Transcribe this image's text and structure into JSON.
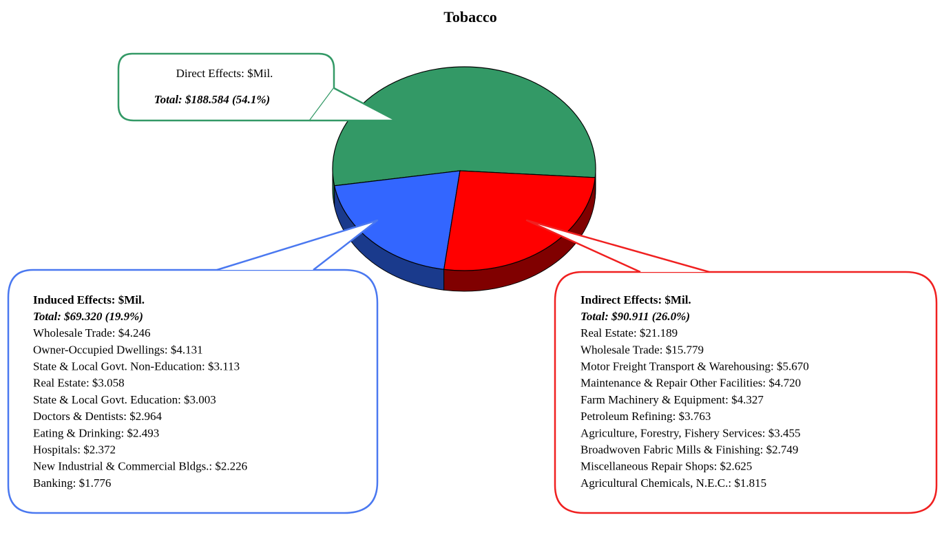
{
  "chart_data": {
    "type": "pie",
    "title": "Tobacco",
    "categories": [
      "Direct Effects: $Mil.",
      "Induced Effects: $Mil.",
      "Indirect Effects: $Mil."
    ],
    "values": [
      188.584,
      69.32,
      90.911
    ],
    "value_labels": [
      "Total: $188.584 (54.1%)",
      "Total: $69.320 (19.9%)",
      "Total: $90.911 (26.0%)"
    ],
    "colors": [
      "#339966",
      "#3366ff",
      "#ff0000"
    ],
    "side_colors": [
      "#1f6b45",
      "#1a3a8c",
      "#800000"
    ],
    "details": [
      [],
      [
        "Wholesale Trade: $4.246",
        "Owner-Occupied Dwellings: $4.131",
        "State & Local Govt. Non-Education: $3.113",
        "Real Estate: $3.058",
        "State & Local Govt. Education: $3.003",
        "Doctors & Dentists: $2.964",
        "Eating & Drinking: $2.493",
        "Hospitals: $2.372",
        "New Industrial & Commercial Bldgs.: $2.226",
        "Banking: $1.776"
      ],
      [
        "Real Estate: $21.189",
        "Wholesale Trade: $15.779",
        "Motor Freight Transport & Warehousing: $5.670",
        "Maintenance & Repair Other Facilities: $4.720",
        "Farm Machinery & Equipment: $4.327",
        "Petroleum Refining: $3.763",
        "Agriculture, Forestry, Fishery Services: $3.455",
        "Broadwoven Fabric Mills & Finishing: $2.749",
        "Miscellaneous Repair Shops: $2.625",
        "Agricultural Chemicals, N.E.C.: $1.815"
      ]
    ]
  }
}
